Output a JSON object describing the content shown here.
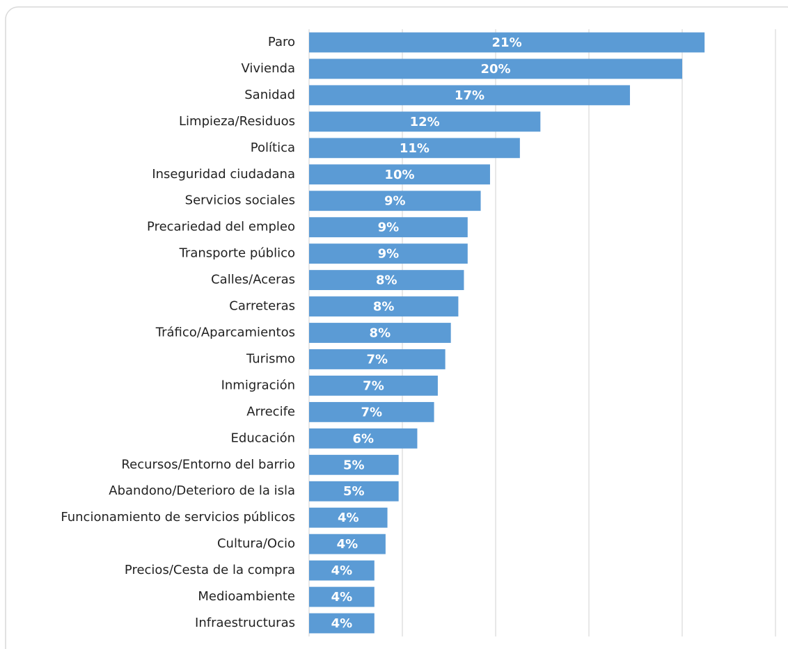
{
  "chart_data": {
    "type": "bar",
    "orientation": "horizontal",
    "categories": [
      "Paro",
      "Vivienda",
      "Sanidad",
      "Limpieza/Residuos",
      "Política",
      "Inseguridad ciudadana",
      "Servicios sociales",
      "Precariedad del empleo",
      "Transporte público",
      "Calles/Aceras",
      "Carreteras",
      "Tráfico/Aparcamientos",
      "Turismo",
      "Inmigración",
      "Arrecife",
      "Educación",
      "Recursos/Entorno del barrio",
      "Abandono/Deterioro de la isla",
      "Funcionamiento de servicios públicos",
      "Cultura/Ocio",
      "Precios/Cesta de la compra",
      "Medioambiente",
      "Infraestructuras"
    ],
    "values": [
      21.2,
      20.0,
      17.2,
      12.4,
      11.3,
      9.7,
      9.2,
      8.5,
      8.5,
      8.3,
      8.0,
      7.6,
      7.3,
      6.9,
      6.7,
      5.8,
      4.8,
      4.8,
      4.2,
      4.1,
      3.5,
      3.5,
      3.5
    ],
    "value_labels": [
      "21%",
      "20%",
      "17%",
      "12%",
      "11%",
      "10%",
      "9%",
      "9%",
      "9%",
      "8%",
      "8%",
      "8%",
      "7%",
      "7%",
      "7%",
      "6%",
      "5%",
      "5%",
      "4%",
      "4%",
      "4%",
      "4%",
      "4%"
    ],
    "color": "#5b9bd5",
    "xlim": [
      0,
      25
    ],
    "xticks": [
      0,
      5,
      10,
      15,
      20,
      25
    ],
    "grid": true
  }
}
